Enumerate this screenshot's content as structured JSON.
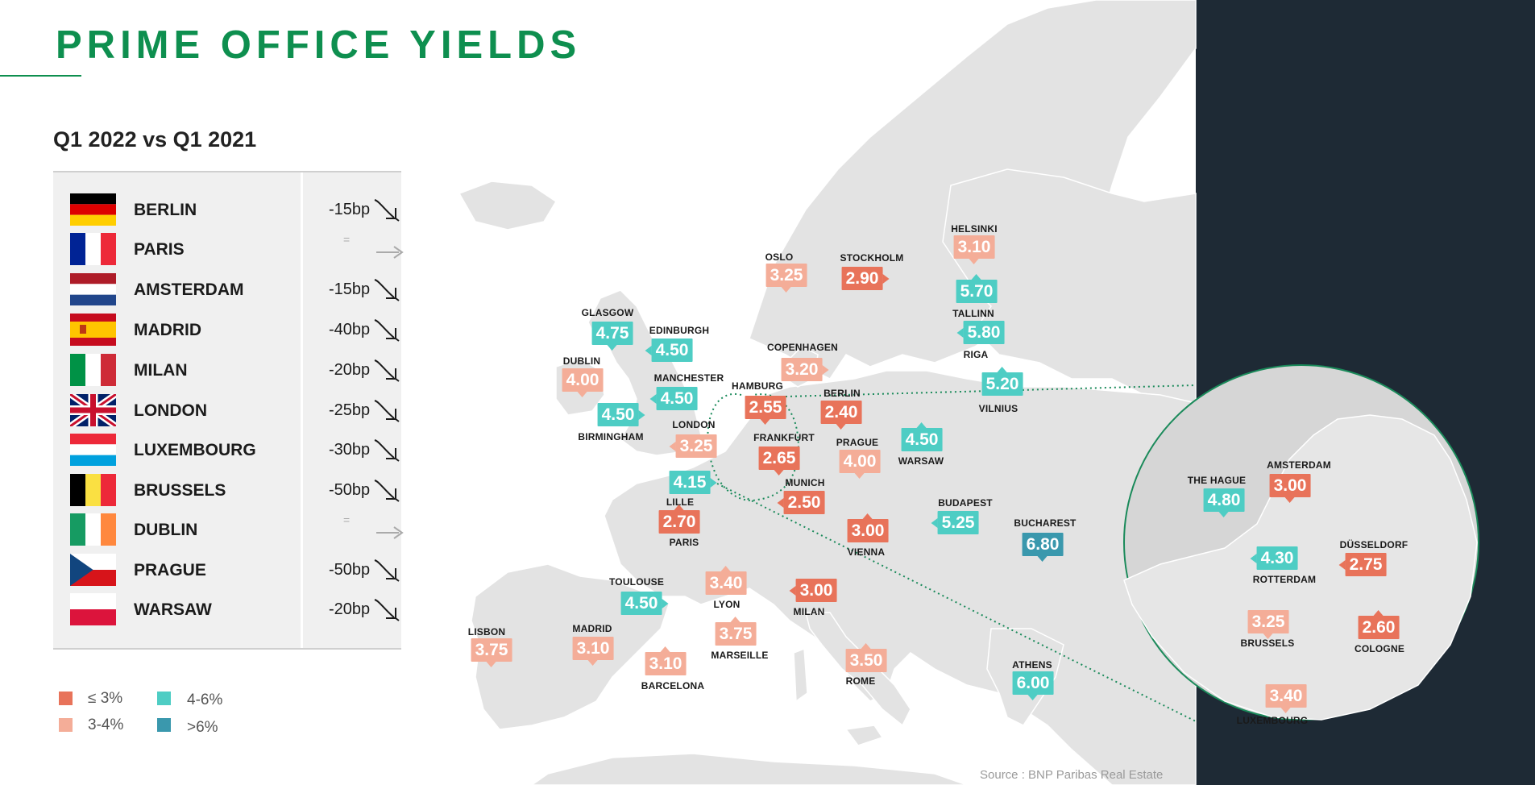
{
  "title": "PRIME OFFICE YIELDS",
  "subtitle": "Q1 2022 vs Q1 2021",
  "comparison": [
    {
      "city": "BERLIN",
      "change": "-15bp",
      "trend": "down",
      "flag": "germany"
    },
    {
      "city": "PARIS",
      "change": "",
      "trend": "flat",
      "flag": "france"
    },
    {
      "city": "AMSTERDAM",
      "change": "-15bp",
      "trend": "down",
      "flag": "netherlands"
    },
    {
      "city": "MADRID",
      "change": "-40bp",
      "trend": "down",
      "flag": "spain"
    },
    {
      "city": "MILAN",
      "change": "-20bp",
      "trend": "down",
      "flag": "italy"
    },
    {
      "city": "LONDON",
      "change": "-25bp",
      "trend": "down",
      "flag": "united-kingdom"
    },
    {
      "city": "LUXEMBOURG",
      "change": "-30bp",
      "trend": "down",
      "flag": "luxembourg"
    },
    {
      "city": "BRUSSELS",
      "change": "-50bp",
      "trend": "down",
      "flag": "belgium"
    },
    {
      "city": "DUBLIN",
      "change": "",
      "trend": "flat",
      "flag": "ireland"
    },
    {
      "city": "PRAGUE",
      "change": "-50bp",
      "trend": "down",
      "flag": "czech-republic"
    },
    {
      "city": "WARSAW",
      "change": "-20bp",
      "trend": "down",
      "flag": "poland"
    }
  ],
  "flat_symbol": "=",
  "legend": [
    {
      "label": "≤ 3%",
      "color": "#e8735a"
    },
    {
      "label": "3-4%",
      "color": "#f4ad98"
    },
    {
      "label": "4-6%",
      "color": "#4ecdc4"
    },
    {
      "label": ">6%",
      "color": "#3a98ad"
    }
  ],
  "colors": {
    "le3": "#e8735a",
    "3to4": "#f4ad98",
    "4to6": "#4ecdc4",
    "gt6": "#3a98ad",
    "title": "#0e8f4f",
    "panel": "#1e2a35"
  },
  "map_cities": [
    {
      "name": "HELSINKI",
      "yield": "3.10",
      "band": "3to4"
    },
    {
      "name": "OSLO",
      "yield": "3.25",
      "band": "3to4"
    },
    {
      "name": "STOCKHOLM",
      "yield": "2.90",
      "band": "le3"
    },
    {
      "name": "TALLINN",
      "yield": "5.70",
      "band": "4to6"
    },
    {
      "name": "RIGA",
      "yield": "5.80",
      "band": "4to6"
    },
    {
      "name": "VILNIUS",
      "yield": "5.20",
      "band": "4to6"
    },
    {
      "name": "GLASGOW",
      "yield": "4.75",
      "band": "4to6"
    },
    {
      "name": "EDINBURGH",
      "yield": "4.50",
      "band": "4to6"
    },
    {
      "name": "DUBLIN",
      "yield": "4.00",
      "band": "3to4"
    },
    {
      "name": "MANCHESTER",
      "yield": "4.50",
      "band": "4to6"
    },
    {
      "name": "BIRMINGHAM",
      "yield": "4.50",
      "band": "4to6"
    },
    {
      "name": "COPENHAGEN",
      "yield": "3.20",
      "band": "3to4"
    },
    {
      "name": "HAMBURG",
      "yield": "2.55",
      "band": "le3"
    },
    {
      "name": "BERLIN",
      "yield": "2.40",
      "band": "le3"
    },
    {
      "name": "LONDON",
      "yield": "3.25",
      "band": "3to4"
    },
    {
      "name": "FRANKFURT",
      "yield": "2.65",
      "band": "le3"
    },
    {
      "name": "PRAGUE",
      "yield": "4.00",
      "band": "3to4"
    },
    {
      "name": "WARSAW",
      "yield": "4.50",
      "band": "4to6"
    },
    {
      "name": "LILLE",
      "yield": "4.15",
      "band": "4to6"
    },
    {
      "name": "MUNICH",
      "yield": "2.50",
      "band": "le3"
    },
    {
      "name": "PARIS",
      "yield": "2.70",
      "band": "le3"
    },
    {
      "name": "BUDAPEST",
      "yield": "5.25",
      "band": "4to6"
    },
    {
      "name": "VIENNA",
      "yield": "3.00",
      "band": "le3"
    },
    {
      "name": "BUCHAREST",
      "yield": "6.80",
      "band": "gt6"
    },
    {
      "name": "TOULOUSE",
      "yield": "4.50",
      "band": "4to6"
    },
    {
      "name": "LYON",
      "yield": "3.40",
      "band": "3to4"
    },
    {
      "name": "MILAN",
      "yield": "3.00",
      "band": "le3"
    },
    {
      "name": "LISBON",
      "yield": "3.75",
      "band": "3to4"
    },
    {
      "name": "MADRID",
      "yield": "3.10",
      "band": "3to4"
    },
    {
      "name": "MARSEILLE",
      "yield": "3.75",
      "band": "3to4"
    },
    {
      "name": "BARCELONA",
      "yield": "3.10",
      "band": "3to4"
    },
    {
      "name": "ROME",
      "yield": "3.50",
      "band": "3to4"
    },
    {
      "name": "ATHENS",
      "yield": "6.00",
      "band": "4to6"
    }
  ],
  "inset_cities": [
    {
      "name": "THE HAGUE",
      "yield": "4.80",
      "band": "4to6"
    },
    {
      "name": "AMSTERDAM",
      "yield": "3.00",
      "band": "le3"
    },
    {
      "name": "DÜSSELDORF",
      "yield": "2.75",
      "band": "le3"
    },
    {
      "name": "ROTTERDAM",
      "yield": "4.30",
      "band": "4to6"
    },
    {
      "name": "BRUSSELS",
      "yield": "3.25",
      "band": "3to4"
    },
    {
      "name": "COLOGNE",
      "yield": "2.60",
      "band": "le3"
    },
    {
      "name": "LUXEMBOURG",
      "yield": "3.40",
      "band": "3to4"
    }
  ],
  "source": "Source : BNP Paribas Real Estate"
}
